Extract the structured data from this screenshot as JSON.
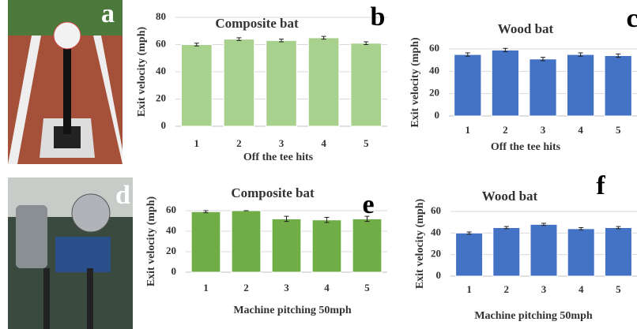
{
  "photo_labels": [
    "a",
    "d"
  ],
  "chart_data": [
    {
      "type": "bar",
      "label": "b",
      "title": "Composite bat",
      "xlabel": "Off the tee hits",
      "ylabel": "Exit velocity (mph)",
      "categories": [
        "1",
        "2",
        "3",
        "4",
        "5"
      ],
      "values": [
        60,
        64,
        63,
        65,
        61
      ],
      "errors": [
        1,
        1,
        1,
        1,
        1
      ],
      "color": "#a9d18e",
      "ylim": [
        0,
        80
      ],
      "yticks": [
        0,
        20,
        40,
        60,
        80
      ],
      "grid": true
    },
    {
      "type": "bar",
      "label": "c",
      "title": "Wood bat",
      "xlabel": "Off the tee hits",
      "ylabel": "Exit velocity (mph)",
      "categories": [
        "1",
        "2",
        "3",
        "4",
        "5"
      ],
      "values": [
        55,
        59,
        51,
        55,
        54
      ],
      "errors": [
        1.5,
        1.5,
        1.5,
        1.5,
        1.5
      ],
      "color": "#4472c4",
      "ylim": [
        0,
        60
      ],
      "yticks": [
        0,
        20,
        40,
        60
      ],
      "grid": true
    },
    {
      "type": "bar",
      "label": "e",
      "title": "Composite bat",
      "xlabel": "Machine pitching 50mph",
      "ylabel": "Exit velocity (mph)",
      "categories": [
        "1",
        "2",
        "3",
        "4",
        "5"
      ],
      "values": [
        59,
        60,
        52,
        51,
        52
      ],
      "errors": [
        1,
        0,
        2.5,
        2.5,
        2.5
      ],
      "color": "#70ad47",
      "ylim": [
        0,
        60
      ],
      "yticks": [
        0,
        20,
        40,
        60
      ],
      "grid": true
    },
    {
      "type": "bar",
      "label": "f",
      "title": "Wood bat",
      "xlabel": "Machine pitching 50mph",
      "ylabel": "Exit velocity (mph)",
      "categories": [
        "1",
        "2",
        "3",
        "4",
        "5"
      ],
      "values": [
        40,
        45,
        48,
        44,
        45
      ],
      "errors": [
        1,
        1,
        1,
        1,
        1
      ],
      "color": "#4472c4",
      "ylim": [
        0,
        60
      ],
      "yticks": [
        0,
        20,
        40,
        60
      ],
      "grid": true
    }
  ]
}
